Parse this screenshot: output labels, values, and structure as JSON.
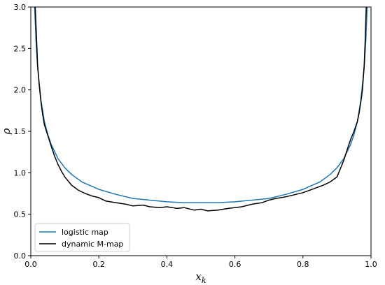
{
  "chart_data": {
    "type": "line",
    "xlabel": "x_k",
    "ylabel": "ρ",
    "xlim": [
      0.0,
      1.0
    ],
    "ylim": [
      0.0,
      3.0
    ],
    "grid": false,
    "legend_placement": "lower-left",
    "x_ticks": [
      "0.0",
      "0.2",
      "0.4",
      "0.6",
      "0.8",
      "1.0"
    ],
    "y_ticks": [
      "0.0",
      "0.5",
      "1.0",
      "1.5",
      "2.0",
      "2.5",
      "3.0"
    ],
    "series": [
      {
        "name": "logistic map",
        "color": "#1f77b4",
        "x": [
          0.011,
          0.015,
          0.02,
          0.03,
          0.04,
          0.05,
          0.06,
          0.08,
          0.1,
          0.12,
          0.15,
          0.2,
          0.25,
          0.3,
          0.35,
          0.4,
          0.45,
          0.5,
          0.55,
          0.6,
          0.65,
          0.7,
          0.75,
          0.8,
          0.85,
          0.88,
          0.9,
          0.92,
          0.94,
          0.95,
          0.96,
          0.97,
          0.98,
          0.985,
          0.989
        ],
        "y": [
          3.04,
          2.61,
          2.27,
          1.87,
          1.62,
          1.46,
          1.34,
          1.17,
          1.06,
          0.98,
          0.89,
          0.8,
          0.74,
          0.69,
          0.67,
          0.65,
          0.64,
          0.64,
          0.64,
          0.65,
          0.67,
          0.69,
          0.74,
          0.8,
          0.89,
          0.98,
          1.06,
          1.17,
          1.34,
          1.46,
          1.62,
          1.87,
          2.27,
          2.61,
          3.04
        ]
      },
      {
        "name": "dynamic M-map",
        "color": "#000000",
        "x": [
          0.013,
          0.017,
          0.02,
          0.025,
          0.03,
          0.035,
          0.04,
          0.05,
          0.06,
          0.07,
          0.08,
          0.09,
          0.1,
          0.12,
          0.14,
          0.16,
          0.18,
          0.2,
          0.22,
          0.25,
          0.28,
          0.3,
          0.33,
          0.35,
          0.38,
          0.4,
          0.43,
          0.45,
          0.48,
          0.5,
          0.52,
          0.55,
          0.58,
          0.6,
          0.62,
          0.65,
          0.68,
          0.7,
          0.72,
          0.75,
          0.78,
          0.8,
          0.82,
          0.84,
          0.86,
          0.88,
          0.9,
          0.91,
          0.92,
          0.93,
          0.94,
          0.95,
          0.96,
          0.965,
          0.97,
          0.975,
          0.98,
          0.983,
          0.986
        ],
        "y": [
          3.0,
          2.6,
          2.3,
          2.05,
          1.85,
          1.7,
          1.58,
          1.45,
          1.32,
          1.2,
          1.1,
          1.02,
          0.95,
          0.85,
          0.79,
          0.75,
          0.72,
          0.7,
          0.66,
          0.64,
          0.62,
          0.6,
          0.61,
          0.59,
          0.58,
          0.59,
          0.57,
          0.58,
          0.55,
          0.56,
          0.54,
          0.55,
          0.57,
          0.58,
          0.59,
          0.62,
          0.64,
          0.67,
          0.69,
          0.71,
          0.74,
          0.76,
          0.79,
          0.82,
          0.85,
          0.89,
          0.95,
          1.05,
          1.15,
          1.28,
          1.4,
          1.5,
          1.62,
          1.72,
          1.85,
          2.0,
          2.3,
          2.6,
          3.0
        ]
      }
    ]
  }
}
